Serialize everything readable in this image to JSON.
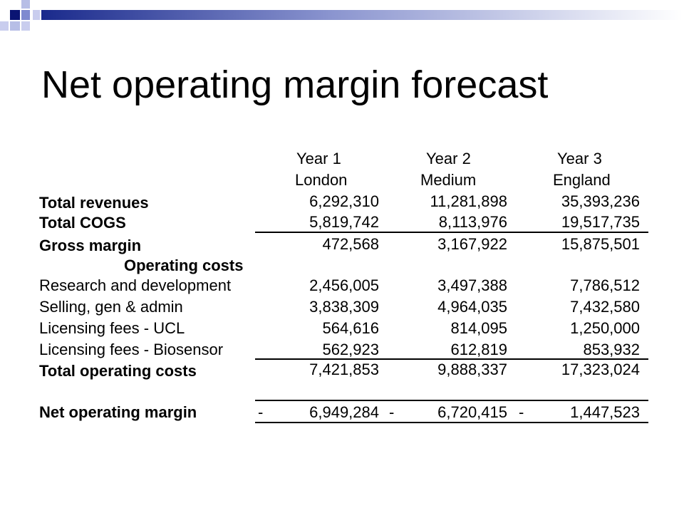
{
  "slide": {
    "title": "Net operating margin forecast"
  },
  "columns": [
    {
      "year": "Year 1",
      "region": "London"
    },
    {
      "year": "Year 2",
      "region": "Medium"
    },
    {
      "year": "Year 3",
      "region": "England"
    }
  ],
  "rows": {
    "total_revenues": {
      "label": "Total revenues",
      "v": [
        "6,292,310",
        "11,281,898",
        "35,393,236"
      ]
    },
    "total_cogs": {
      "label": "Total COGS",
      "v": [
        "5,819,742",
        "8,113,976",
        "19,517,735"
      ]
    },
    "gross_margin": {
      "label": "Gross margin",
      "v": [
        "472,568",
        "3,167,922",
        "15,875,501"
      ]
    },
    "operating_costs_heading": "Operating costs",
    "research": {
      "label": "Research and development",
      "v": [
        "2,456,005",
        "3,497,388",
        "7,786,512"
      ]
    },
    "selling": {
      "label": "Selling, gen & admin",
      "v": [
        "3,838,309",
        "4,964,035",
        "7,432,580"
      ]
    },
    "lic_ucl": {
      "label": "Licensing fees - UCL",
      "v": [
        "564,616",
        "814,095",
        "1,250,000"
      ]
    },
    "lic_bio": {
      "label": "Licensing fees - Biosensor",
      "v": [
        "562,923",
        "612,819",
        "853,932"
      ]
    },
    "total_opcosts": {
      "label": "Total operating costs",
      "v": [
        "7,421,853",
        "9,888,337",
        "17,323,024"
      ]
    },
    "net_margin": {
      "label": "Net operating margin",
      "sign": "-",
      "v": [
        "6,949,284",
        "6,720,415",
        "1,447,523"
      ]
    }
  }
}
